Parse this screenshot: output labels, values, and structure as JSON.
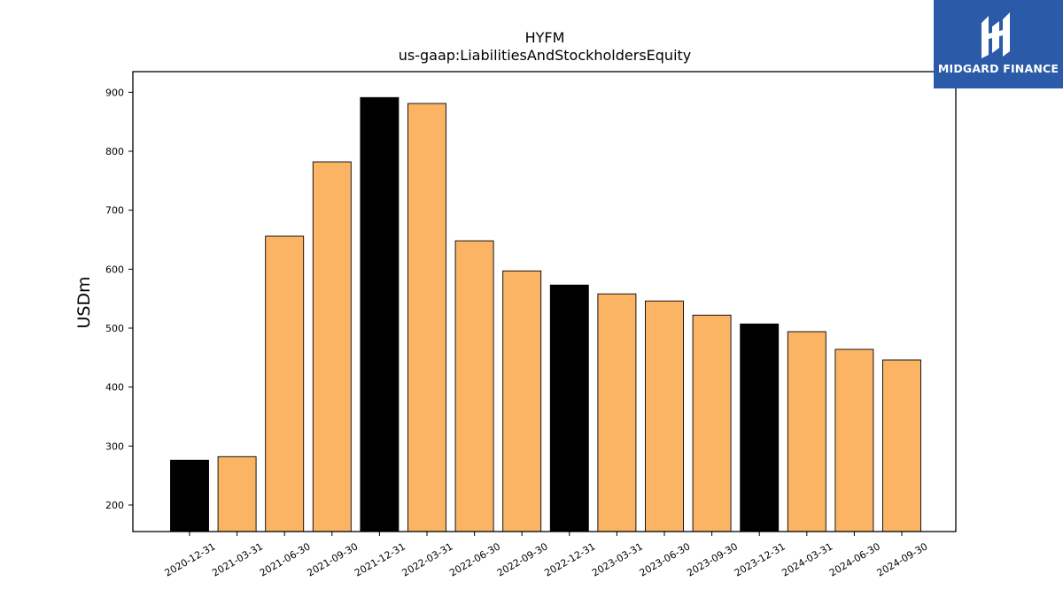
{
  "logo": {
    "text": "MIDGARD FINANCE",
    "icon": "midgard-logo-icon",
    "background": "#2a5aa8"
  },
  "chart_data": {
    "type": "bar",
    "title": "HYFM",
    "subtitle": "us-gaap:LiabilitiesAndStockholdersEquity",
    "xlabel": "",
    "ylabel": "USDm",
    "ylim": [
      155,
      935
    ],
    "yticks": [
      200,
      300,
      400,
      500,
      600,
      700,
      800,
      900
    ],
    "grid": false,
    "categories": [
      "2020-12-31",
      "2021-03-31",
      "2021-06-30",
      "2021-09-30",
      "2021-12-31",
      "2022-03-31",
      "2022-06-30",
      "2022-09-30",
      "2022-12-31",
      "2023-03-31",
      "2023-06-30",
      "2023-09-30",
      "2023-12-31",
      "2024-03-31",
      "2024-06-30",
      "2024-09-30"
    ],
    "values": [
      276,
      282,
      656,
      782,
      891,
      881,
      648,
      597,
      573,
      558,
      546,
      522,
      507,
      494,
      464,
      446
    ],
    "highlight": [
      true,
      false,
      false,
      false,
      true,
      false,
      false,
      false,
      true,
      false,
      false,
      false,
      true,
      false,
      false,
      false
    ],
    "colors": {
      "bar": "#fbb463",
      "highlight": "#000000",
      "edge": "#000000"
    }
  }
}
